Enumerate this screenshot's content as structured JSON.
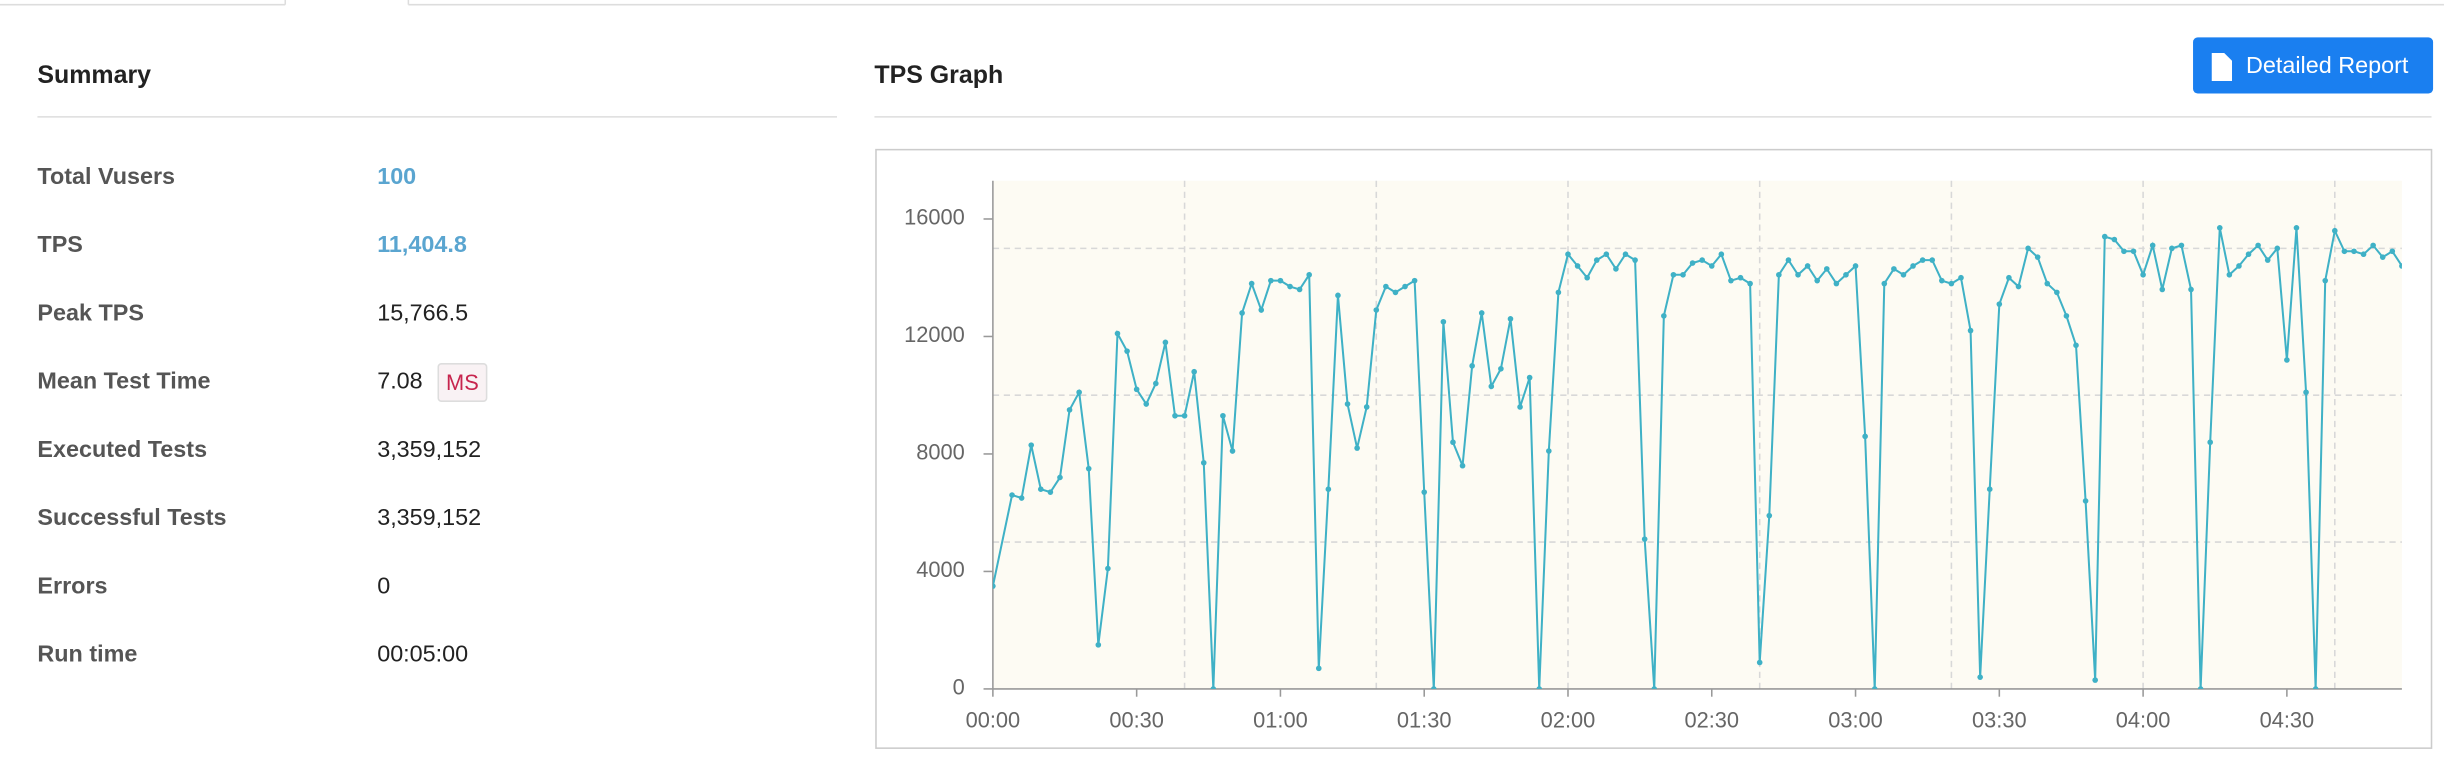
{
  "summary": {
    "title": "Summary",
    "rows": [
      {
        "label": "Total Vusers",
        "value": "100"
      },
      {
        "label": "TPS",
        "value": "11,404.8"
      },
      {
        "label": "Peak TPS",
        "value": "15,766.5"
      },
      {
        "label": "Mean Test Time",
        "value": "7.08",
        "unit": "MS"
      },
      {
        "label": "Executed Tests",
        "value": "3,359,152"
      },
      {
        "label": "Successful Tests",
        "value": "3,359,152"
      },
      {
        "label": "Errors",
        "value": "0"
      },
      {
        "label": "Run time",
        "value": "00:05:00"
      }
    ]
  },
  "graph": {
    "title": "TPS Graph",
    "button": "Detailed Report"
  },
  "chart_data": {
    "type": "line",
    "color": "#3fb1c6",
    "x": [
      0,
      4,
      6,
      8,
      10,
      12,
      14,
      16,
      18,
      20,
      22,
      24,
      26,
      28,
      30,
      32,
      34,
      36,
      38,
      40,
      42,
      44,
      46,
      48,
      50,
      52,
      54,
      56,
      58,
      60,
      62,
      64,
      66,
      68,
      70,
      72,
      74,
      76,
      78,
      80,
      82,
      84,
      86,
      88,
      90,
      92,
      94,
      96,
      98,
      100,
      102,
      104,
      106,
      108,
      110,
      112,
      114,
      116,
      118,
      120,
      122,
      124,
      126,
      128,
      130,
      132,
      134,
      136,
      138,
      140,
      142,
      144,
      146,
      148,
      150,
      152,
      154,
      156,
      158,
      160,
      162,
      164,
      166,
      168,
      170,
      172,
      174,
      176,
      178,
      180,
      182,
      184,
      186,
      188,
      190,
      192,
      194,
      196,
      198,
      200,
      202,
      204,
      206,
      208,
      210,
      212,
      214,
      216,
      218,
      220,
      222,
      224,
      226,
      228,
      230,
      232,
      234,
      236,
      238,
      240,
      242,
      244,
      246,
      248,
      250,
      252,
      254,
      256,
      258,
      260,
      262,
      264,
      266,
      268,
      270,
      272,
      274,
      276,
      278,
      280,
      282,
      284,
      286,
      288,
      290,
      292,
      294
    ],
    "values": [
      3500,
      6600,
      6500,
      8300,
      6800,
      6700,
      7200,
      9500,
      10100,
      7500,
      1500,
      4100,
      12100,
      11500,
      10200,
      9700,
      10400,
      11800,
      9300,
      9300,
      10800,
      7700,
      0,
      9300,
      8100,
      12800,
      13800,
      12900,
      13900,
      13900,
      13700,
      13600,
      14100,
      700,
      6800,
      13400,
      9700,
      8200,
      9600,
      12900,
      13700,
      13500,
      13700,
      13900,
      6700,
      0,
      12500,
      8400,
      7600,
      11000,
      12800,
      10300,
      10900,
      12600,
      9600,
      10600,
      0,
      8100,
      13500,
      14800,
      14400,
      14000,
      14600,
      14800,
      14300,
      14800,
      14600,
      5100,
      0,
      12700,
      14100,
      14100,
      14500,
      14600,
      14400,
      14800,
      13900,
      14000,
      13800,
      900,
      5900,
      14100,
      14600,
      14100,
      14400,
      13900,
      14300,
      13800,
      14100,
      14400,
      8600,
      0,
      13800,
      14300,
      14100,
      14400,
      14600,
      14600,
      13900,
      13800,
      14000,
      12200,
      400,
      6800,
      13100,
      14000,
      13700,
      15000,
      14700,
      13800,
      13500,
      12700,
      11700,
      6400,
      300,
      15400,
      15300,
      14900,
      14900,
      14100,
      15100,
      13600,
      15000,
      15100,
      13600,
      0,
      8400,
      15700,
      14100,
      14400,
      14800,
      15100,
      14600,
      15000,
      11200,
      15700,
      10100,
      0,
      13900,
      15600,
      14900,
      14900,
      14800,
      15100,
      14700,
      14900,
      14400
    ],
    "xlim": [
      0,
      294
    ],
    "ylim": [
      0,
      17300
    ],
    "xticks": [
      {
        "value": 0,
        "label": "00:00"
      },
      {
        "value": 30,
        "label": "00:30"
      },
      {
        "value": 60,
        "label": "01:00"
      },
      {
        "value": 90,
        "label": "01:30"
      },
      {
        "value": 120,
        "label": "02:00"
      },
      {
        "value": 150,
        "label": "02:30"
      },
      {
        "value": 180,
        "label": "03:00"
      },
      {
        "value": 210,
        "label": "03:30"
      },
      {
        "value": 240,
        "label": "04:00"
      },
      {
        "value": 270,
        "label": "04:30"
      }
    ],
    "yticks": [
      0,
      4000,
      8000,
      12000,
      16000
    ],
    "grid_x": [
      40,
      80,
      120,
      160,
      200,
      240,
      280
    ],
    "grid_y": [
      5000,
      10000,
      15000
    ]
  }
}
